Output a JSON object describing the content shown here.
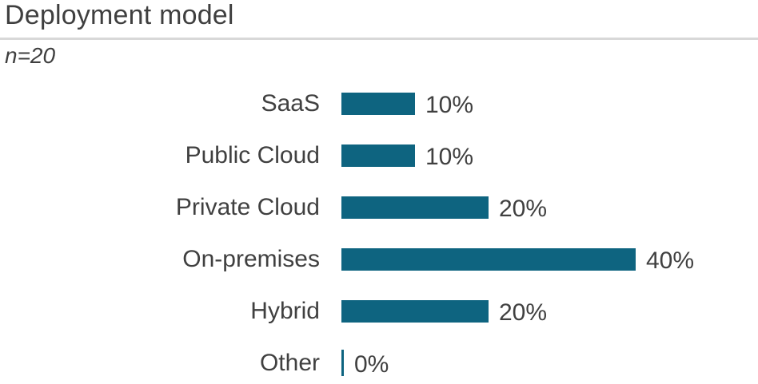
{
  "header": {
    "title": "Deployment model",
    "sample_size_note": "n=20"
  },
  "chart_data": {
    "type": "bar",
    "orientation": "horizontal",
    "title": "Deployment model",
    "subtitle": "n=20",
    "categories": [
      "SaaS",
      "Public Cloud",
      "Private Cloud",
      "On-premises",
      "Hybrid",
      "Other"
    ],
    "values": [
      10,
      10,
      20,
      40,
      20,
      0
    ],
    "value_labels": [
      "10%",
      "10%",
      "20%",
      "40%",
      "20%",
      "0%"
    ],
    "unit": "%",
    "xlim": [
      0,
      40
    ],
    "grid": false,
    "legend": false,
    "data_labels_position": "outside-end"
  },
  "style": {
    "bar_color": "#0e6480",
    "text_color": "#404040",
    "title_color": "#3f3f3f",
    "divider_color": "#d8d8d8",
    "background_color": "#ffffff"
  }
}
